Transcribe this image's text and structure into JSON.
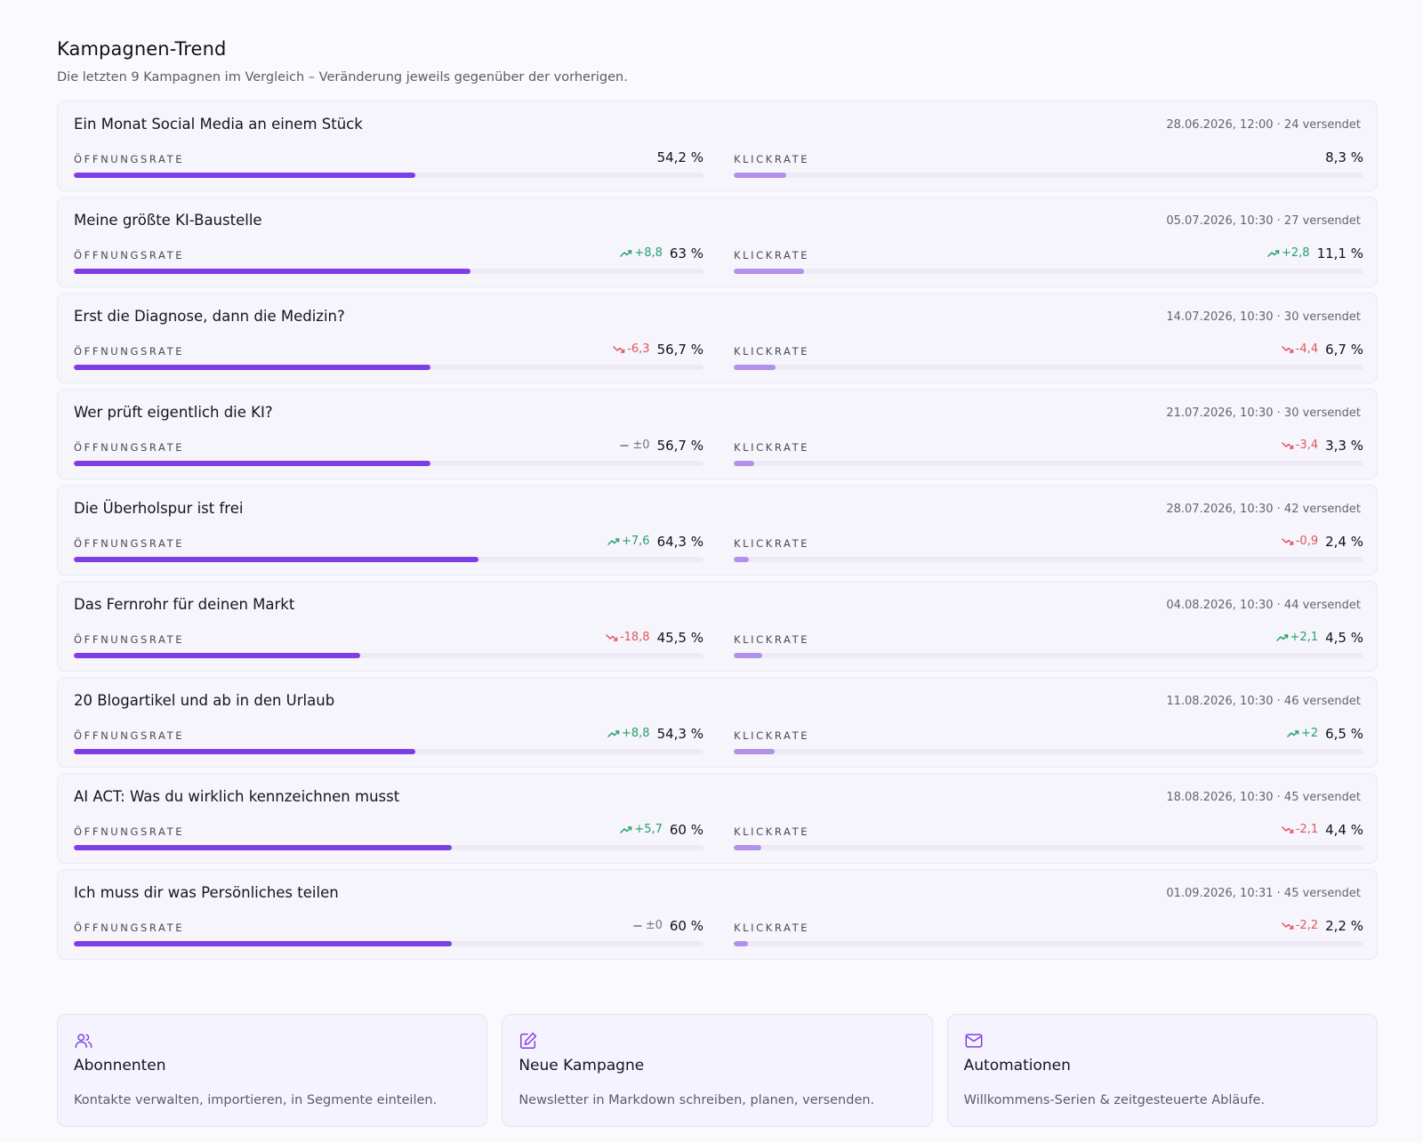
{
  "header": {
    "title": "Kampagnen-Trend",
    "subtitle": "Die letzten 9 Kampagnen im Vergleich – Veränderung jeweils gegenüber der vorherigen."
  },
  "labels": {
    "open": "ÖFFNUNGSRATE",
    "click": "KLICKRATE"
  },
  "colors": {
    "open_bar": "#7e3ee3",
    "click_bar": "#b191ea",
    "up": "#24a06b",
    "down": "#e2555e",
    "flat": "#77737f",
    "accent": "#7e3ee3"
  },
  "campaigns": [
    {
      "title": "Ein Monat Social Media an einem Stück",
      "meta": "28.06.2026, 12:00 · 24 versendet",
      "open": {
        "value": "54,2 %",
        "rate": 54.2,
        "delta": "",
        "trend": "none"
      },
      "click": {
        "value": "8,3 %",
        "rate": 8.3,
        "delta": "",
        "trend": "none"
      }
    },
    {
      "title": "Meine größte KI-Baustelle",
      "meta": "05.07.2026, 10:30 · 27 versendet",
      "open": {
        "value": "63 %",
        "rate": 63,
        "delta": "+8,8",
        "trend": "up"
      },
      "click": {
        "value": "11,1 %",
        "rate": 11.1,
        "delta": "+2,8",
        "trend": "up"
      }
    },
    {
      "title": "Erst die Diagnose, dann die Medizin?",
      "meta": "14.07.2026, 10:30 · 30 versendet",
      "open": {
        "value": "56,7 %",
        "rate": 56.7,
        "delta": "-6,3",
        "trend": "down"
      },
      "click": {
        "value": "6,7 %",
        "rate": 6.7,
        "delta": "-4,4",
        "trend": "down"
      }
    },
    {
      "title": "Wer prüft eigentlich die KI?",
      "meta": "21.07.2026, 10:30 · 30 versendet",
      "open": {
        "value": "56,7 %",
        "rate": 56.7,
        "delta": "±0",
        "trend": "flat"
      },
      "click": {
        "value": "3,3 %",
        "rate": 3.3,
        "delta": "-3,4",
        "trend": "down"
      }
    },
    {
      "title": "Die Überholspur ist frei",
      "meta": "28.07.2026, 10:30 · 42 versendet",
      "open": {
        "value": "64,3 %",
        "rate": 64.3,
        "delta": "+7,6",
        "trend": "up"
      },
      "click": {
        "value": "2,4 %",
        "rate": 2.4,
        "delta": "-0,9",
        "trend": "down"
      }
    },
    {
      "title": "Das Fernrohr für deinen Markt",
      "meta": "04.08.2026, 10:30 · 44 versendet",
      "open": {
        "value": "45,5 %",
        "rate": 45.5,
        "delta": "-18,8",
        "trend": "down"
      },
      "click": {
        "value": "4,5 %",
        "rate": 4.5,
        "delta": "+2,1",
        "trend": "up"
      }
    },
    {
      "title": "20 Blogartikel und ab in den Urlaub",
      "meta": "11.08.2026, 10:30 · 46 versendet",
      "open": {
        "value": "54,3 %",
        "rate": 54.3,
        "delta": "+8,8",
        "trend": "up"
      },
      "click": {
        "value": "6,5 %",
        "rate": 6.5,
        "delta": "+2",
        "trend": "up"
      }
    },
    {
      "title": "AI ACT: Was du wirklich kennzeichnen musst",
      "meta": "18.08.2026, 10:30 · 45 versendet",
      "open": {
        "value": "60 %",
        "rate": 60,
        "delta": "+5,7",
        "trend": "up"
      },
      "click": {
        "value": "4,4 %",
        "rate": 4.4,
        "delta": "-2,1",
        "trend": "down"
      }
    },
    {
      "title": "Ich muss dir was Persönliches teilen",
      "meta": "01.09.2026, 10:31 · 45 versendet",
      "open": {
        "value": "60 %",
        "rate": 60,
        "delta": "±0",
        "trend": "flat"
      },
      "click": {
        "value": "2,2 %",
        "rate": 2.2,
        "delta": "-2,2",
        "trend": "down"
      }
    }
  ],
  "tiles": [
    {
      "icon": "users-icon",
      "title": "Abonnenten",
      "description": "Kontakte verwalten, importieren, in Segmente einteilen."
    },
    {
      "icon": "edit-icon",
      "title": "Neue Kampagne",
      "description": "Newsletter in Markdown schreiben, planen, versenden."
    },
    {
      "icon": "mail-icon",
      "title": "Automationen",
      "description": "Willkommens-Serien & zeitgesteuerte Abläufe."
    }
  ]
}
